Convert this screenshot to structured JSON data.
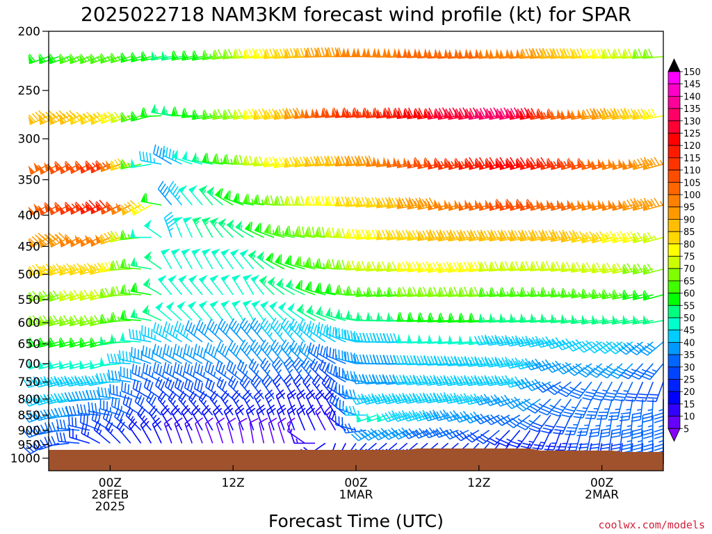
{
  "chart_data": {
    "type": "wind_barb_time_height",
    "title": "2025022718 NAM3KM forecast wind profile (kt) for SPAR",
    "xlabel": "Forecast Time (UTC)",
    "units": "kt",
    "y_ticks": [
      "200",
      "250",
      "300",
      "350",
      "400",
      "450",
      "500",
      "550",
      "600",
      "650",
      "700",
      "750",
      "800",
      "850",
      "900",
      "950",
      "1000"
    ],
    "y_axis": {
      "scale": "log",
      "range": [
        200,
        1000
      ],
      "inverted": true
    },
    "x_ticks": [
      {
        "hours": 6,
        "lines": [
          "00Z",
          "28FEB",
          "2025"
        ]
      },
      {
        "hours": 18,
        "lines": [
          "12Z"
        ]
      },
      {
        "hours": 30,
        "lines": [
          "00Z",
          "1MAR"
        ]
      },
      {
        "hours": 42,
        "lines": [
          "12Z"
        ]
      },
      {
        "hours": 54,
        "lines": [
          "00Z",
          "2MAR"
        ]
      }
    ],
    "x_range": [
      0,
      60
    ],
    "forecast_hours": [
      0,
      1,
      2,
      3,
      4,
      5,
      6,
      7,
      8,
      9,
      10,
      11,
      12,
      13,
      14,
      15,
      16,
      17,
      18,
      19,
      20,
      21,
      22,
      23,
      24,
      25,
      26,
      27,
      28,
      29,
      30,
      31,
      32,
      33,
      34,
      35,
      36,
      37,
      38,
      39,
      40,
      41,
      42,
      43,
      44,
      45,
      46,
      47,
      48,
      49,
      50,
      51,
      52,
      53,
      54,
      55,
      56,
      57,
      58,
      59,
      60
    ],
    "levels_hpa": [
      220,
      275,
      330,
      385,
      435,
      490,
      540,
      595,
      645,
      700,
      750,
      800,
      850,
      900,
      945
    ],
    "keyframes": [
      {
        "hours": 0,
        "speed": [
          60,
          90,
          105,
          105,
          95,
          85,
          70,
          70,
          60,
          50,
          45,
          45,
          40,
          35,
          30
        ],
        "dir": [
          250,
          245,
          240,
          240,
          240,
          250,
          250,
          255,
          255,
          255,
          255,
          250,
          250,
          250,
          240
        ]
      },
      {
        "hours": 6,
        "speed": [
          65,
          85,
          115,
          120,
          100,
          85,
          75,
          70,
          60,
          50,
          45,
          40,
          35,
          30,
          25
        ],
        "dir": [
          250,
          245,
          245,
          245,
          245,
          255,
          255,
          255,
          255,
          255,
          260,
          270,
          280,
          300,
          310
        ]
      },
      {
        "hours": 10,
        "speed": [
          60,
          60,
          50,
          80,
          50,
          55,
          60,
          55,
          45,
          40,
          35,
          30,
          30,
          25,
          20
        ],
        "dir": [
          255,
          255,
          260,
          240,
          270,
          280,
          280,
          280,
          280,
          290,
          295,
          300,
          310,
          320,
          330
        ]
      },
      {
        "hours": 12,
        "speed": [
          55,
          55,
          40,
          40,
          45,
          50,
          50,
          50,
          45,
          40,
          35,
          30,
          25,
          20,
          15
        ],
        "dir": [
          260,
          280,
          300,
          320,
          340,
          330,
          320,
          310,
          300,
          300,
          300,
          310,
          320,
          330,
          340
        ]
      },
      {
        "hours": 16,
        "speed": [
          60,
          60,
          55,
          55,
          55,
          50,
          50,
          50,
          40,
          40,
          35,
          30,
          25,
          20,
          10
        ],
        "dir": [
          260,
          260,
          280,
          320,
          330,
          330,
          320,
          320,
          310,
          300,
          300,
          300,
          320,
          330,
          340
        ]
      },
      {
        "hours": 20,
        "speed": [
          75,
          75,
          70,
          60,
          55,
          50,
          50,
          50,
          40,
          40,
          35,
          30,
          25,
          20,
          10
        ],
        "dir": [
          265,
          260,
          270,
          280,
          300,
          320,
          330,
          330,
          320,
          320,
          310,
          320,
          330,
          340,
          350
        ]
      },
      {
        "hours": 24,
        "speed": [
          85,
          90,
          80,
          70,
          65,
          60,
          55,
          50,
          45,
          40,
          35,
          25,
          20,
          20,
          10
        ],
        "dir": [
          265,
          260,
          260,
          270,
          280,
          290,
          300,
          310,
          320,
          320,
          330,
          330,
          340,
          340,
          340
        ]
      },
      {
        "hours": 28,
        "speed": [
          95,
          110,
          90,
          80,
          70,
          65,
          60,
          55,
          45,
          35,
          30,
          25,
          20,
          15,
          20
        ],
        "dir": [
          270,
          265,
          265,
          270,
          275,
          275,
          280,
          290,
          300,
          300,
          310,
          320,
          330,
          330,
          200
        ]
      },
      {
        "hours": 32,
        "speed": [
          100,
          115,
          95,
          85,
          80,
          75,
          65,
          55,
          45,
          40,
          40,
          45,
          50,
          40,
          25
        ],
        "dir": [
          270,
          265,
          265,
          265,
          265,
          265,
          265,
          270,
          270,
          270,
          265,
          255,
          250,
          240,
          230
        ]
      },
      {
        "hours": 40,
        "speed": [
          105,
          130,
          115,
          100,
          90,
          80,
          70,
          60,
          50,
          45,
          45,
          45,
          40,
          35,
          25
        ],
        "dir": [
          265,
          260,
          255,
          255,
          260,
          260,
          265,
          265,
          265,
          265,
          260,
          260,
          255,
          250,
          230
        ]
      },
      {
        "hours": 46,
        "speed": [
          100,
          135,
          125,
          110,
          90,
          75,
          65,
          55,
          45,
          45,
          45,
          40,
          35,
          25,
          20
        ],
        "dir": [
          265,
          260,
          255,
          255,
          260,
          265,
          265,
          265,
          260,
          260,
          260,
          250,
          240,
          220,
          210
        ]
      },
      {
        "hours": 50,
        "speed": [
          90,
          110,
          115,
          105,
          90,
          75,
          65,
          55,
          45,
          40,
          35,
          35,
          30,
          25,
          20
        ],
        "dir": [
          265,
          260,
          255,
          255,
          260,
          265,
          265,
          265,
          255,
          250,
          240,
          220,
          210,
          200,
          200
        ]
      },
      {
        "hours": 54,
        "speed": [
          80,
          95,
          105,
          100,
          85,
          75,
          65,
          55,
          45,
          40,
          35,
          35,
          35,
          30,
          25
        ],
        "dir": [
          265,
          260,
          255,
          255,
          255,
          260,
          260,
          260,
          240,
          230,
          210,
          200,
          190,
          190,
          190
        ]
      },
      {
        "hours": 60,
        "speed": [
          70,
          80,
          95,
          95,
          75,
          70,
          60,
          55,
          40,
          35,
          30,
          35,
          35,
          35,
          30
        ],
        "dir": [
          265,
          260,
          255,
          255,
          255,
          255,
          255,
          260,
          230,
          220,
          200,
          180,
          180,
          180,
          180
        ]
      }
    ],
    "colorbar": {
      "values": [
        150,
        145,
        140,
        135,
        130,
        125,
        120,
        115,
        110,
        105,
        100,
        95,
        90,
        85,
        80,
        75,
        70,
        65,
        60,
        55,
        50,
        45,
        40,
        35,
        30,
        25,
        20,
        15,
        10,
        5
      ],
      "colors": [
        "#ff00ff",
        "#ff00c8",
        "#ff0099",
        "#ff0066",
        "#ff0033",
        "#ff0000",
        "#ff1a00",
        "#ff3300",
        "#ff4d00",
        "#ff6600",
        "#ff8000",
        "#ff9900",
        "#ffbf00",
        "#ffd700",
        "#ffff00",
        "#ccff00",
        "#80ff00",
        "#40ff00",
        "#00ff00",
        "#00ff80",
        "#00ffcc",
        "#00ccff",
        "#0099ff",
        "#0066ff",
        "#0044ff",
        "#0022ff",
        "#0000ff",
        "#3300ff",
        "#6600ff",
        "#8800ff"
      ]
    },
    "terrain_color": "#a0522d",
    "grid": false,
    "legend": "right"
  },
  "credit": "coolwx.com/models"
}
